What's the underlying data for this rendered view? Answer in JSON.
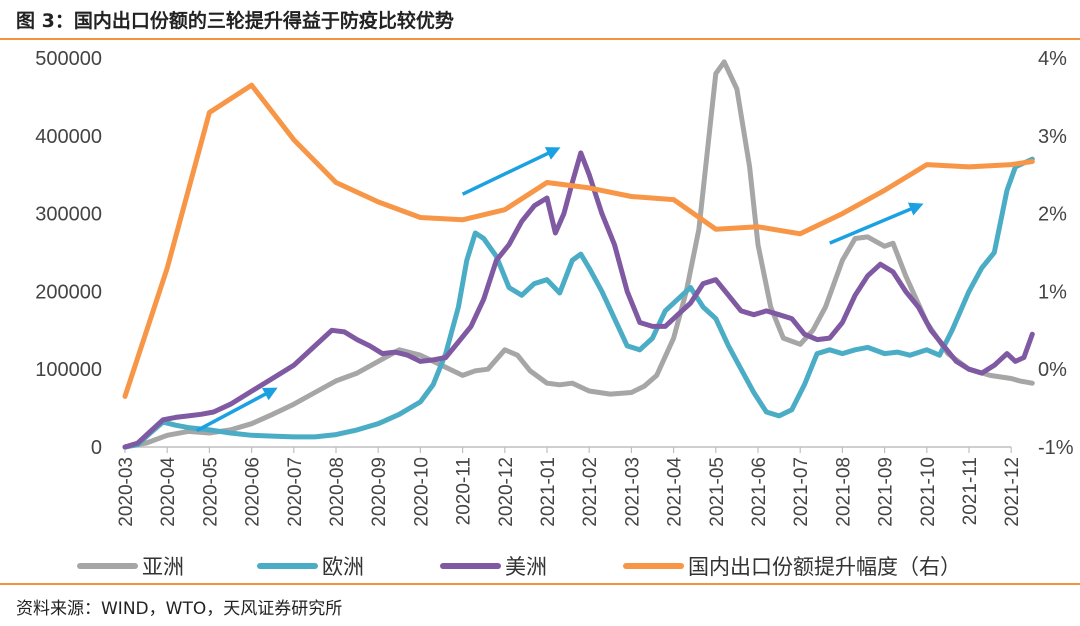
{
  "title": "图 3：国内出口份额的三轮提升得益于防疫比较优势",
  "source": "资料来源：WIND，WTO，天风证券研究所",
  "colors": {
    "asia": "#a6a6a6",
    "europe": "#4bacc6",
    "americas": "#7f5aa2",
    "china_share": "#f79646",
    "arrow": "#1ba1e2",
    "rule": "#f4923e"
  },
  "chart_data": {
    "type": "line",
    "x_labels": [
      "2020-03",
      "2020-04",
      "2020-05",
      "2020-06",
      "2020-07",
      "2020-08",
      "2020-09",
      "2020-10",
      "2020-11",
      "2020-12",
      "2021-01",
      "2021-02",
      "2021-03",
      "2021-04",
      "2021-05",
      "2021-06",
      "2021-07",
      "2021-08",
      "2021-09",
      "2021-10",
      "2021-11",
      "2021-12"
    ],
    "left_axis": {
      "ticks": [
        "0",
        "100000",
        "200000",
        "300000",
        "400000",
        "500000"
      ],
      "ylim": [
        0,
        500000
      ]
    },
    "right_axis": {
      "ticks": [
        "-1%",
        "0%",
        "1%",
        "2%",
        "3%",
        "4%"
      ],
      "ylim": [
        -1,
        4
      ],
      "unit": "%"
    },
    "series": [
      {
        "name": "亚洲",
        "key": "asia",
        "axis": "left",
        "points": [
          [
            0,
            0
          ],
          [
            0.5,
            5000
          ],
          [
            1,
            15000
          ],
          [
            1.5,
            20000
          ],
          [
            2,
            18000
          ],
          [
            2.5,
            22000
          ],
          [
            3,
            30000
          ],
          [
            3.5,
            42000
          ],
          [
            4,
            55000
          ],
          [
            4.5,
            70000
          ],
          [
            5,
            85000
          ],
          [
            5.5,
            95000
          ],
          [
            6,
            110000
          ],
          [
            6.5,
            125000
          ],
          [
            7,
            118000
          ],
          [
            7.5,
            105000
          ],
          [
            8,
            92000
          ],
          [
            8.3,
            98000
          ],
          [
            8.6,
            100000
          ],
          [
            9,
            125000
          ],
          [
            9.3,
            118000
          ],
          [
            9.6,
            98000
          ],
          [
            10,
            82000
          ],
          [
            10.3,
            80000
          ],
          [
            10.6,
            82000
          ],
          [
            11,
            72000
          ],
          [
            11.5,
            68000
          ],
          [
            12,
            70000
          ],
          [
            12.3,
            78000
          ],
          [
            12.6,
            92000
          ],
          [
            13,
            140000
          ],
          [
            13.3,
            200000
          ],
          [
            13.6,
            280000
          ],
          [
            14,
            480000
          ],
          [
            14.2,
            495000
          ],
          [
            14.5,
            460000
          ],
          [
            14.8,
            360000
          ],
          [
            15,
            260000
          ],
          [
            15.3,
            180000
          ],
          [
            15.6,
            140000
          ],
          [
            16,
            132000
          ],
          [
            16.3,
            150000
          ],
          [
            16.6,
            180000
          ],
          [
            17,
            240000
          ],
          [
            17.3,
            268000
          ],
          [
            17.6,
            270000
          ],
          [
            18,
            258000
          ],
          [
            18.2,
            262000
          ],
          [
            18.5,
            220000
          ],
          [
            19,
            160000
          ],
          [
            19.5,
            120000
          ],
          [
            20,
            100000
          ],
          [
            20.5,
            92000
          ],
          [
            21,
            88000
          ],
          [
            21.2,
            85000
          ],
          [
            21.5,
            82000
          ]
        ]
      },
      {
        "name": "欧洲",
        "key": "europe",
        "axis": "left",
        "points": [
          [
            0,
            0
          ],
          [
            0.3,
            3000
          ],
          [
            0.6,
            18000
          ],
          [
            0.9,
            32000
          ],
          [
            1.2,
            28000
          ],
          [
            1.5,
            25000
          ],
          [
            2,
            22000
          ],
          [
            2.5,
            18000
          ],
          [
            3,
            15000
          ],
          [
            3.5,
            14000
          ],
          [
            4,
            13000
          ],
          [
            4.5,
            13000
          ],
          [
            5,
            16000
          ],
          [
            5.5,
            22000
          ],
          [
            6,
            30000
          ],
          [
            6.5,
            42000
          ],
          [
            7,
            58000
          ],
          [
            7.3,
            80000
          ],
          [
            7.6,
            120000
          ],
          [
            7.9,
            180000
          ],
          [
            8.1,
            240000
          ],
          [
            8.3,
            275000
          ],
          [
            8.5,
            268000
          ],
          [
            8.8,
            245000
          ],
          [
            9.1,
            205000
          ],
          [
            9.4,
            195000
          ],
          [
            9.7,
            210000
          ],
          [
            10,
            215000
          ],
          [
            10.3,
            198000
          ],
          [
            10.6,
            240000
          ],
          [
            10.8,
            248000
          ],
          [
            11,
            230000
          ],
          [
            11.3,
            200000
          ],
          [
            11.6,
            165000
          ],
          [
            11.9,
            130000
          ],
          [
            12.2,
            125000
          ],
          [
            12.5,
            140000
          ],
          [
            12.8,
            175000
          ],
          [
            13.1,
            190000
          ],
          [
            13.4,
            205000
          ],
          [
            13.7,
            180000
          ],
          [
            14,
            165000
          ],
          [
            14.3,
            130000
          ],
          [
            14.6,
            100000
          ],
          [
            14.9,
            70000
          ],
          [
            15.2,
            45000
          ],
          [
            15.5,
            40000
          ],
          [
            15.8,
            48000
          ],
          [
            16.1,
            80000
          ],
          [
            16.4,
            120000
          ],
          [
            16.7,
            125000
          ],
          [
            17,
            120000
          ],
          [
            17.3,
            125000
          ],
          [
            17.6,
            128000
          ],
          [
            18,
            120000
          ],
          [
            18.3,
            122000
          ],
          [
            18.6,
            118000
          ],
          [
            19,
            125000
          ],
          [
            19.3,
            118000
          ],
          [
            19.6,
            150000
          ],
          [
            20,
            200000
          ],
          [
            20.3,
            230000
          ],
          [
            20.6,
            250000
          ],
          [
            20.9,
            330000
          ],
          [
            21.1,
            360000
          ],
          [
            21.5,
            370000
          ]
        ]
      },
      {
        "name": "美洲",
        "key": "americas",
        "axis": "left",
        "points": [
          [
            0,
            0
          ],
          [
            0.3,
            5000
          ],
          [
            0.6,
            20000
          ],
          [
            0.9,
            35000
          ],
          [
            1.2,
            38000
          ],
          [
            1.5,
            40000
          ],
          [
            1.8,
            42000
          ],
          [
            2.1,
            45000
          ],
          [
            2.5,
            55000
          ],
          [
            2.8,
            65000
          ],
          [
            3.1,
            75000
          ],
          [
            3.4,
            85000
          ],
          [
            3.7,
            95000
          ],
          [
            4,
            105000
          ],
          [
            4.3,
            120000
          ],
          [
            4.6,
            135000
          ],
          [
            4.9,
            150000
          ],
          [
            5.2,
            148000
          ],
          [
            5.5,
            138000
          ],
          [
            5.8,
            130000
          ],
          [
            6.1,
            120000
          ],
          [
            6.4,
            122000
          ],
          [
            6.7,
            118000
          ],
          [
            7,
            110000
          ],
          [
            7.3,
            112000
          ],
          [
            7.6,
            115000
          ],
          [
            7.9,
            135000
          ],
          [
            8.2,
            155000
          ],
          [
            8.5,
            190000
          ],
          [
            8.8,
            240000
          ],
          [
            9.1,
            260000
          ],
          [
            9.4,
            290000
          ],
          [
            9.7,
            310000
          ],
          [
            10,
            320000
          ],
          [
            10.2,
            275000
          ],
          [
            10.4,
            300000
          ],
          [
            10.6,
            340000
          ],
          [
            10.8,
            378000
          ],
          [
            11,
            350000
          ],
          [
            11.3,
            300000
          ],
          [
            11.6,
            260000
          ],
          [
            11.9,
            200000
          ],
          [
            12.2,
            160000
          ],
          [
            12.5,
            155000
          ],
          [
            12.8,
            155000
          ],
          [
            13.1,
            170000
          ],
          [
            13.4,
            185000
          ],
          [
            13.7,
            210000
          ],
          [
            14,
            215000
          ],
          [
            14.3,
            195000
          ],
          [
            14.6,
            175000
          ],
          [
            14.9,
            170000
          ],
          [
            15.2,
            175000
          ],
          [
            15.5,
            170000
          ],
          [
            15.8,
            165000
          ],
          [
            16.1,
            145000
          ],
          [
            16.4,
            138000
          ],
          [
            16.7,
            140000
          ],
          [
            17,
            160000
          ],
          [
            17.3,
            195000
          ],
          [
            17.6,
            220000
          ],
          [
            17.9,
            235000
          ],
          [
            18.2,
            225000
          ],
          [
            18.5,
            200000
          ],
          [
            18.8,
            180000
          ],
          [
            19.1,
            150000
          ],
          [
            19.4,
            130000
          ],
          [
            19.7,
            110000
          ],
          [
            20,
            100000
          ],
          [
            20.3,
            95000
          ],
          [
            20.6,
            105000
          ],
          [
            20.9,
            120000
          ],
          [
            21.1,
            110000
          ],
          [
            21.3,
            115000
          ],
          [
            21.5,
            145000
          ]
        ]
      },
      {
        "name": "国内出口份额提升幅度（右）",
        "key": "china_share",
        "axis": "right",
        "points": [
          [
            0,
            -0.35
          ],
          [
            1,
            1.3
          ],
          [
            2,
            3.3
          ],
          [
            3,
            3.65
          ],
          [
            4,
            2.95
          ],
          [
            5,
            2.4
          ],
          [
            6,
            2.15
          ],
          [
            7,
            1.95
          ],
          [
            8,
            1.92
          ],
          [
            9,
            2.05
          ],
          [
            10,
            2.4
          ],
          [
            11,
            2.33
          ],
          [
            12,
            2.22
          ],
          [
            13,
            2.18
          ],
          [
            14,
            1.8
          ],
          [
            15,
            1.83
          ],
          [
            16,
            1.74
          ],
          [
            17,
            2.0
          ],
          [
            18,
            2.3
          ],
          [
            19,
            2.63
          ],
          [
            20,
            2.6
          ],
          [
            21,
            2.63
          ],
          [
            21.5,
            2.67
          ]
        ]
      }
    ],
    "annotations": [
      {
        "type": "arrow",
        "label": "",
        "from": [
          1.7,
          21000
        ],
        "to": [
          3.5,
          73000
        ]
      },
      {
        "type": "arrow",
        "label": "",
        "from": [
          8.0,
          325000
        ],
        "to": [
          10.2,
          382000
        ]
      },
      {
        "type": "arrow",
        "label": "",
        "from": [
          16.7,
          262000
        ],
        "to": [
          18.8,
          310000
        ]
      }
    ]
  }
}
